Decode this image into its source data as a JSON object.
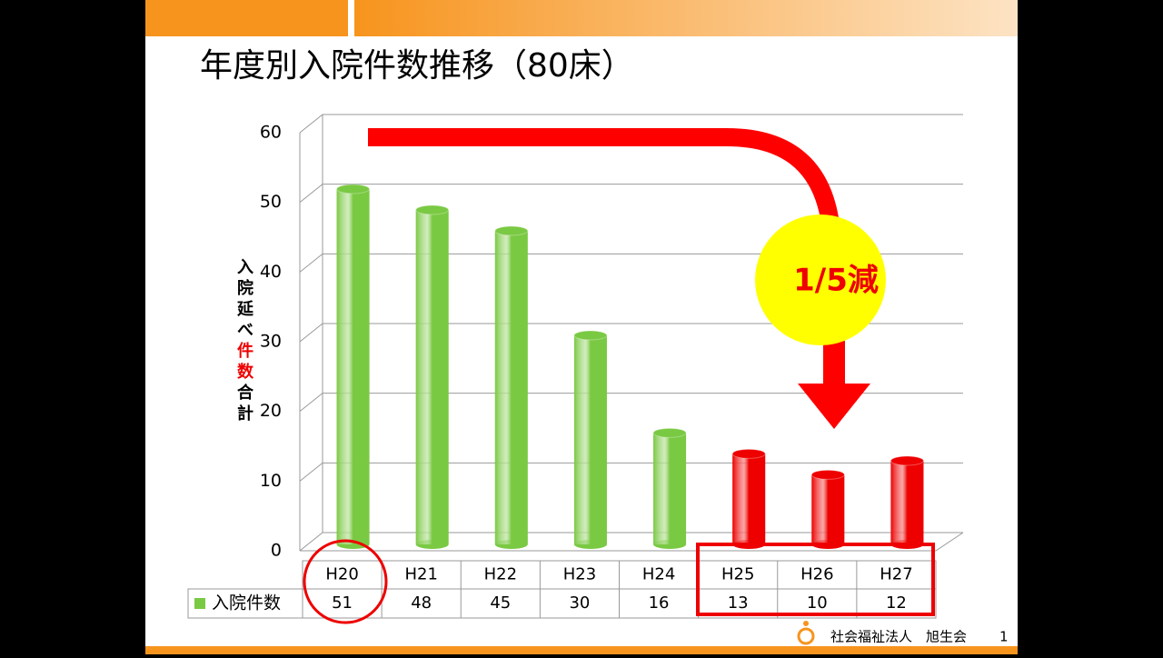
{
  "chart_data": {
    "type": "bar",
    "title": "年度別入院件数推移（80床）",
    "ylabel": [
      {
        "text": "入院延べ",
        "color": "#000000"
      },
      {
        "text": "件数",
        "color": "#ee0000"
      },
      {
        "text": "合計",
        "color": "#000000"
      }
    ],
    "categories": [
      "H20",
      "H21",
      "H22",
      "H23",
      "H24",
      "H25",
      "H26",
      "H27"
    ],
    "series": [
      {
        "name": "入院件数",
        "color": "#7ac943",
        "values": [
          51,
          48,
          45,
          30,
          16,
          13,
          10,
          12
        ],
        "colors": [
          "#7ac943",
          "#7ac943",
          "#7ac943",
          "#7ac943",
          "#7ac943",
          "#ee0000",
          "#ee0000",
          "#ee0000"
        ]
      }
    ],
    "ylim": [
      0,
      60
    ],
    "yticks": [
      0,
      10,
      20,
      30,
      40,
      50,
      60
    ],
    "grid": true,
    "annotation": "1/5減"
  },
  "footer": {
    "organization": "社会福祉法人　旭生会",
    "page": "1"
  }
}
